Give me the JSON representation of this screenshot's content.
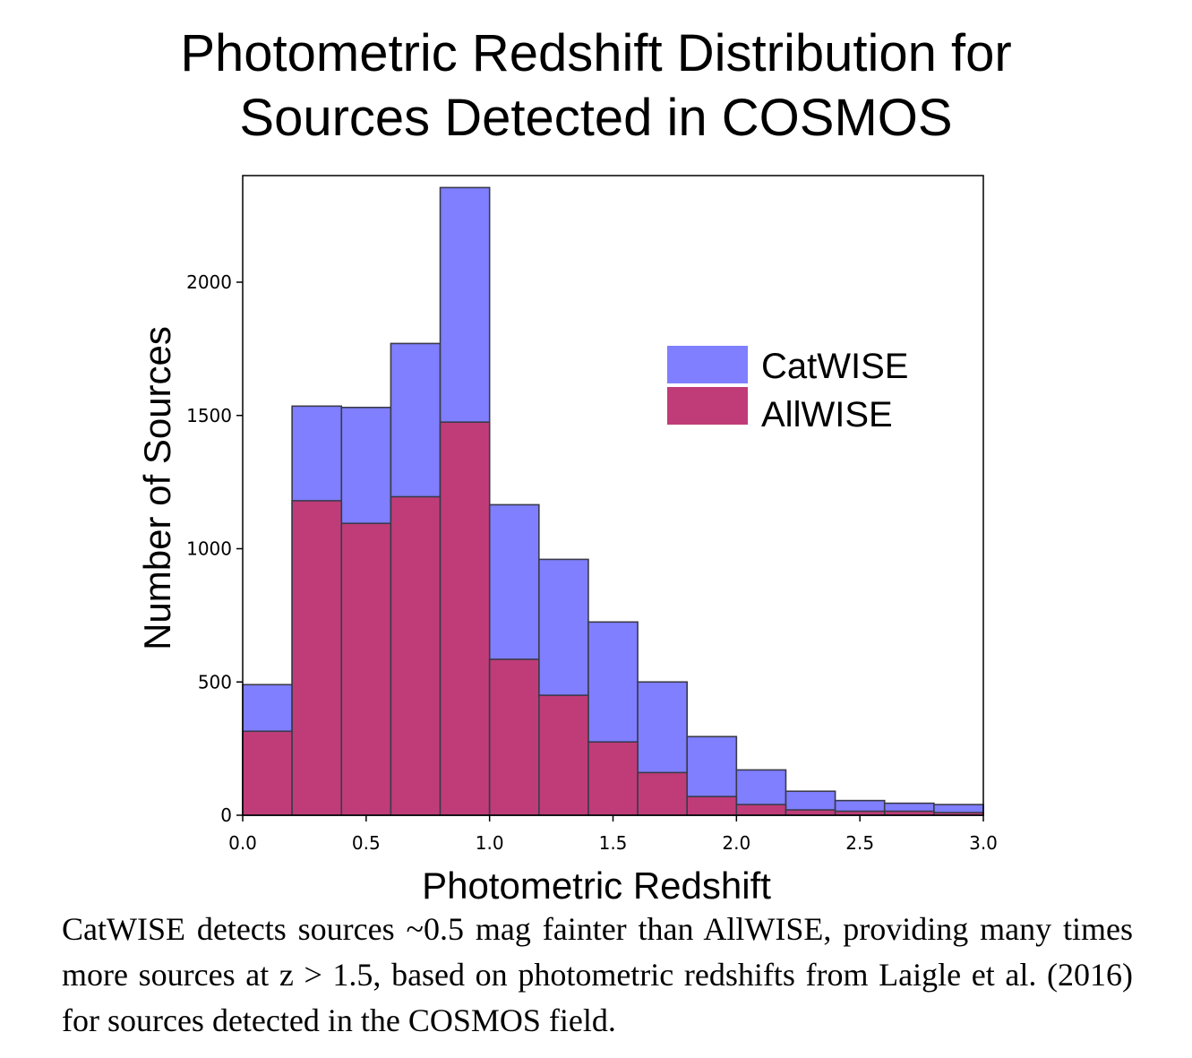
{
  "chart_data": {
    "type": "bar",
    "title_lines": [
      "Photometric Redshift Distribution for",
      "Sources Detected in COSMOS"
    ],
    "xlabel": "Photometric Redshift",
    "ylabel": "Number of Sources",
    "xlim": [
      0.0,
      3.0
    ],
    "ylim": [
      0,
      2400
    ],
    "xticks": [
      "0.0",
      "0.5",
      "1.0",
      "1.5",
      "2.0",
      "2.5",
      "3.0"
    ],
    "xtick_values": [
      0.0,
      0.5,
      1.0,
      1.5,
      2.0,
      2.5,
      3.0
    ],
    "yticks": [
      "0",
      "500",
      "1000",
      "1500",
      "2000"
    ],
    "ytick_values": [
      0,
      500,
      1000,
      1500,
      2000
    ],
    "bin_edges": [
      0.0,
      0.2,
      0.4,
      0.6,
      0.8,
      1.0,
      1.2,
      1.4,
      1.6,
      1.8,
      2.0,
      2.2,
      2.4,
      2.6,
      2.8,
      3.0
    ],
    "legend_position": "upper-right",
    "grid": false,
    "series": [
      {
        "name": "CatWISE",
        "color": "#7f7fff",
        "values": [
          490,
          1535,
          1530,
          1770,
          2355,
          1165,
          960,
          725,
          500,
          295,
          170,
          90,
          55,
          45,
          40
        ]
      },
      {
        "name": "AllWISE",
        "color": "#c03c78",
        "values": [
          315,
          1180,
          1095,
          1195,
          1475,
          585,
          450,
          275,
          160,
          70,
          40,
          20,
          15,
          15,
          10
        ]
      }
    ]
  },
  "caption": "CatWISE detects sources ~0.5 mag fainter than AllWISE, providing many times more sources at z > 1.5, based on photometric redshifts from Laigle et al. (2016) for sources detected in the COSMOS field."
}
